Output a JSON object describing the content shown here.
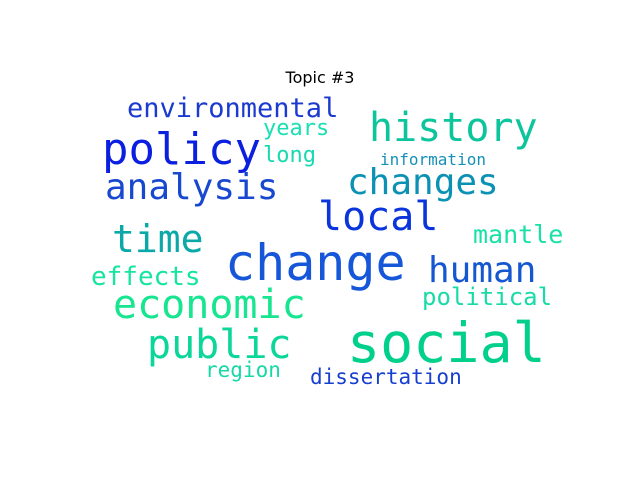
{
  "title": "Topic #3",
  "words": [
    {
      "text": "change",
      "color": "#1656d8"
    },
    {
      "text": "social",
      "color": "#00d08c"
    },
    {
      "text": "policy",
      "color": "#0a1fe0"
    },
    {
      "text": "history",
      "color": "#0cc59c"
    },
    {
      "text": "local",
      "color": "#0a34dc"
    },
    {
      "text": "economic",
      "color": "#17e58f"
    },
    {
      "text": "public",
      "color": "#0cd699"
    },
    {
      "text": "time",
      "color": "#0aa9a8"
    },
    {
      "text": "analysis",
      "color": "#1848cf"
    },
    {
      "text": "changes",
      "color": "#0b91b3"
    },
    {
      "text": "human",
      "color": "#1457d1"
    },
    {
      "text": "environmental",
      "color": "#1a3ad0"
    },
    {
      "text": "effects",
      "color": "#16e4a0"
    },
    {
      "text": "mantle",
      "color": "#18e0a6"
    },
    {
      "text": "political",
      "color": "#18dba7"
    },
    {
      "text": "dissertation",
      "color": "#173fcf"
    },
    {
      "text": "years",
      "color": "#18e0b3"
    },
    {
      "text": "long",
      "color": "#18d9b0"
    },
    {
      "text": "region",
      "color": "#17d8a6"
    },
    {
      "text": "information",
      "color": "#1590b8"
    }
  ]
}
